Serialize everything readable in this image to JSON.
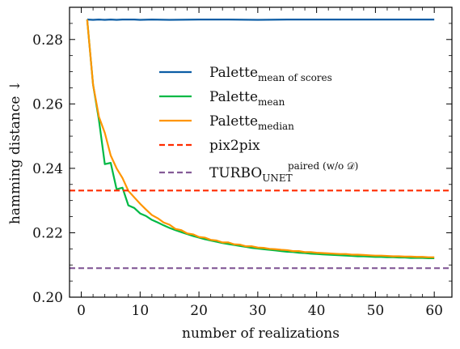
{
  "chart_data": {
    "type": "line",
    "xlabel": "number of realizations",
    "ylabel": "hamming distance ↓",
    "xlim": [
      -2,
      63
    ],
    "ylim": [
      0.2,
      0.29
    ],
    "xticks": [
      0,
      10,
      20,
      30,
      40,
      50,
      60
    ],
    "yticks": [
      0.2,
      0.22,
      0.24,
      0.26,
      0.28
    ],
    "ytick_labels": [
      "0.20",
      "0.22",
      "0.24",
      "0.26",
      "0.28"
    ],
    "grid": false,
    "legend_position": "center-right",
    "series": [
      {
        "name": "Palette",
        "subscript": "mean of scores",
        "color": "#0c5da5",
        "style": "solid",
        "x": [
          1,
          2,
          3,
          4,
          5,
          6,
          7,
          8,
          9,
          10,
          12,
          15,
          20,
          25,
          30,
          35,
          40,
          45,
          50,
          55,
          60
        ],
        "y": [
          0.2862,
          0.2861,
          0.2862,
          0.2861,
          0.2862,
          0.2861,
          0.2862,
          0.2862,
          0.2862,
          0.2861,
          0.2862,
          0.2861,
          0.2862,
          0.2862,
          0.2861,
          0.2862,
          0.2862,
          0.2862,
          0.2862,
          0.2862,
          0.2862
        ]
      },
      {
        "name": "Palette",
        "subscript": "mean",
        "color": "#00b945",
        "style": "solid",
        "x": [
          1,
          2,
          3,
          4,
          5,
          6,
          7,
          8,
          9,
          10,
          11,
          12,
          13,
          14,
          15,
          16,
          17,
          18,
          19,
          20,
          21,
          22,
          23,
          24,
          25,
          26,
          27,
          28,
          29,
          30,
          31,
          32,
          33,
          34,
          35,
          36,
          37,
          38,
          39,
          40,
          41,
          42,
          43,
          44,
          45,
          46,
          47,
          48,
          49,
          50,
          51,
          52,
          53,
          54,
          55,
          56,
          57,
          58,
          59,
          60
        ],
        "y": [
          0.2862,
          0.266,
          0.255,
          0.2413,
          0.2417,
          0.2335,
          0.234,
          0.2285,
          0.2277,
          0.226,
          0.2252,
          0.224,
          0.2232,
          0.2223,
          0.2215,
          0.2208,
          0.2202,
          0.2196,
          0.219,
          0.2185,
          0.218,
          0.2176,
          0.2172,
          0.2168,
          0.2165,
          0.2162,
          0.2159,
          0.2156,
          0.2153,
          0.2151,
          0.2149,
          0.2147,
          0.2145,
          0.2143,
          0.2141,
          0.214,
          0.2138,
          0.2137,
          0.2135,
          0.2134,
          0.2133,
          0.2132,
          0.2131,
          0.213,
          0.2129,
          0.2128,
          0.2127,
          0.2127,
          0.2126,
          0.2125,
          0.2125,
          0.2124,
          0.2124,
          0.2123,
          0.2123,
          0.2122,
          0.2122,
          0.2122,
          0.2121,
          0.2121
        ]
      },
      {
        "name": "Palette",
        "subscript": "median",
        "color": "#ff9500",
        "style": "solid",
        "x": [
          1,
          2,
          3,
          4,
          5,
          6,
          7,
          8,
          9,
          10,
          11,
          12,
          13,
          14,
          15,
          16,
          17,
          18,
          19,
          20,
          21,
          22,
          23,
          24,
          25,
          26,
          27,
          28,
          29,
          30,
          31,
          32,
          33,
          34,
          35,
          36,
          37,
          38,
          39,
          40,
          41,
          42,
          43,
          44,
          45,
          46,
          47,
          48,
          49,
          50,
          51,
          52,
          53,
          54,
          55,
          56,
          57,
          58,
          59,
          60
        ],
        "y": [
          0.2862,
          0.266,
          0.256,
          0.251,
          0.244,
          0.24,
          0.237,
          0.233,
          0.231,
          0.229,
          0.2272,
          0.2255,
          0.2245,
          0.2232,
          0.2225,
          0.2212,
          0.2208,
          0.2198,
          0.2195,
          0.2187,
          0.2185,
          0.2178,
          0.2176,
          0.217,
          0.217,
          0.2164,
          0.2163,
          0.2158,
          0.2158,
          0.2154,
          0.2153,
          0.215,
          0.2149,
          0.2147,
          0.2146,
          0.2143,
          0.2143,
          0.214,
          0.214,
          0.2138,
          0.2137,
          0.2136,
          0.2135,
          0.2134,
          0.2134,
          0.2132,
          0.2132,
          0.2131,
          0.213,
          0.2129,
          0.2129,
          0.2128,
          0.2127,
          0.2127,
          0.2126,
          0.2126,
          0.2125,
          0.2125,
          0.2124,
          0.2124
        ]
      },
      {
        "name": "pix2pix",
        "subscript": "",
        "color": "#ff2c00",
        "style": "dashed",
        "hline": 0.2331
      },
      {
        "name": "TURBO",
        "subscript": "UNET",
        "superscript": "paired (w/o 𝒟)",
        "color": "#845b97",
        "style": "dashed",
        "hline": 0.209
      }
    ]
  }
}
